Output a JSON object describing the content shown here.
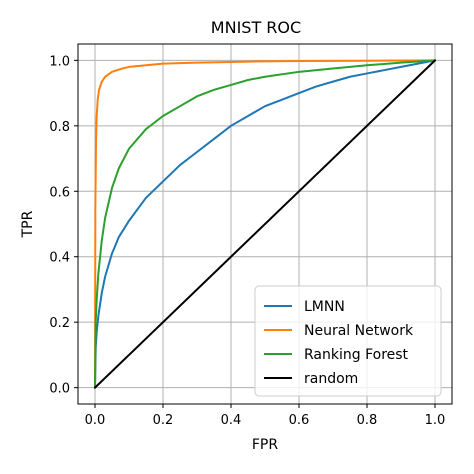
{
  "chart_data": {
    "type": "line",
    "title": "MNIST ROC",
    "xlabel": "FPR",
    "ylabel": "TPR",
    "xlim": [
      -0.05,
      1.05
    ],
    "ylim": [
      -0.05,
      1.05
    ],
    "xticks": [
      "0.0",
      "0.2",
      "0.4",
      "0.6",
      "0.8",
      "1.0"
    ],
    "yticks": [
      "0.0",
      "0.2",
      "0.4",
      "0.6",
      "0.8",
      "1.0"
    ],
    "xtick_values": [
      0,
      0.2,
      0.4,
      0.6,
      0.8,
      1.0
    ],
    "ytick_values": [
      0,
      0.2,
      0.4,
      0.6,
      0.8,
      1.0
    ],
    "grid": true,
    "legend_position": "lower-right",
    "series": [
      {
        "name": "LMNN",
        "color": "#1f77b4",
        "x": [
          0,
          0.002,
          0.005,
          0.01,
          0.02,
          0.03,
          0.05,
          0.07,
          0.1,
          0.15,
          0.2,
          0.25,
          0.3,
          0.35,
          0.4,
          0.45,
          0.5,
          0.55,
          0.6,
          0.65,
          0.7,
          0.75,
          0.8,
          0.85,
          0.9,
          0.95,
          1.0
        ],
        "y": [
          0,
          0.12,
          0.17,
          0.22,
          0.29,
          0.34,
          0.41,
          0.46,
          0.51,
          0.58,
          0.63,
          0.68,
          0.72,
          0.76,
          0.8,
          0.83,
          0.86,
          0.88,
          0.9,
          0.92,
          0.935,
          0.95,
          0.96,
          0.97,
          0.98,
          0.99,
          1.0
        ]
      },
      {
        "name": "Neural Network",
        "color": "#ff7f0e",
        "x": [
          0,
          0.001,
          0.003,
          0.005,
          0.008,
          0.012,
          0.02,
          0.03,
          0.05,
          0.08,
          0.1,
          0.15,
          0.2,
          0.3,
          0.4,
          0.5,
          0.6,
          0.8,
          1.0
        ],
        "y": [
          0,
          0.55,
          0.75,
          0.83,
          0.88,
          0.91,
          0.935,
          0.95,
          0.965,
          0.975,
          0.98,
          0.985,
          0.99,
          0.993,
          0.995,
          0.997,
          0.998,
          0.999,
          1.0
        ]
      },
      {
        "name": "Ranking Forest",
        "color": "#2ca02c",
        "x": [
          0,
          0.002,
          0.005,
          0.01,
          0.02,
          0.03,
          0.05,
          0.07,
          0.1,
          0.15,
          0.2,
          0.25,
          0.3,
          0.35,
          0.4,
          0.45,
          0.5,
          0.6,
          0.7,
          0.8,
          0.9,
          1.0
        ],
        "y": [
          0,
          0.2,
          0.27,
          0.35,
          0.45,
          0.52,
          0.61,
          0.67,
          0.73,
          0.79,
          0.83,
          0.86,
          0.89,
          0.91,
          0.925,
          0.94,
          0.95,
          0.965,
          0.975,
          0.985,
          0.993,
          1.0
        ]
      },
      {
        "name": "random",
        "color": "#000000",
        "x": [
          0,
          1
        ],
        "y": [
          0,
          1
        ]
      }
    ]
  }
}
